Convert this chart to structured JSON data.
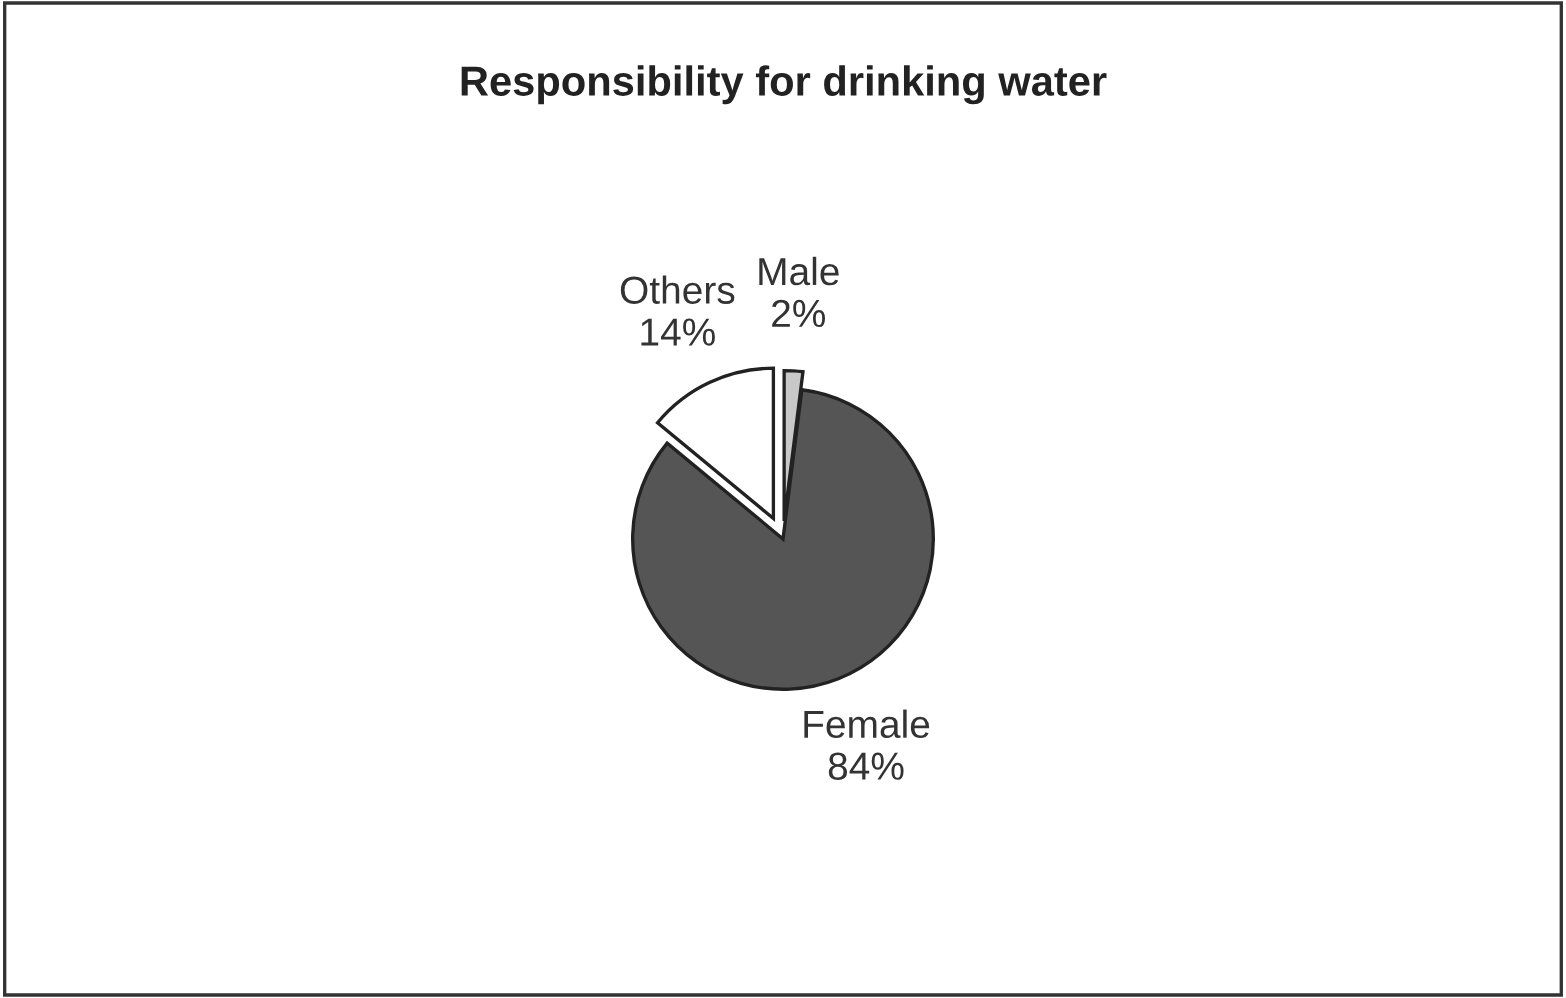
{
  "chart_data": {
    "type": "pie",
    "title": "Responsibility for drinking water",
    "categories": [
      "Male",
      "Female",
      "Others"
    ],
    "values": [
      2,
      84,
      14
    ],
    "value_labels": [
      "2%",
      "84%",
      "14%"
    ],
    "colors": [
      "#c8c8c8",
      "#555555",
      "#ffffff"
    ]
  }
}
